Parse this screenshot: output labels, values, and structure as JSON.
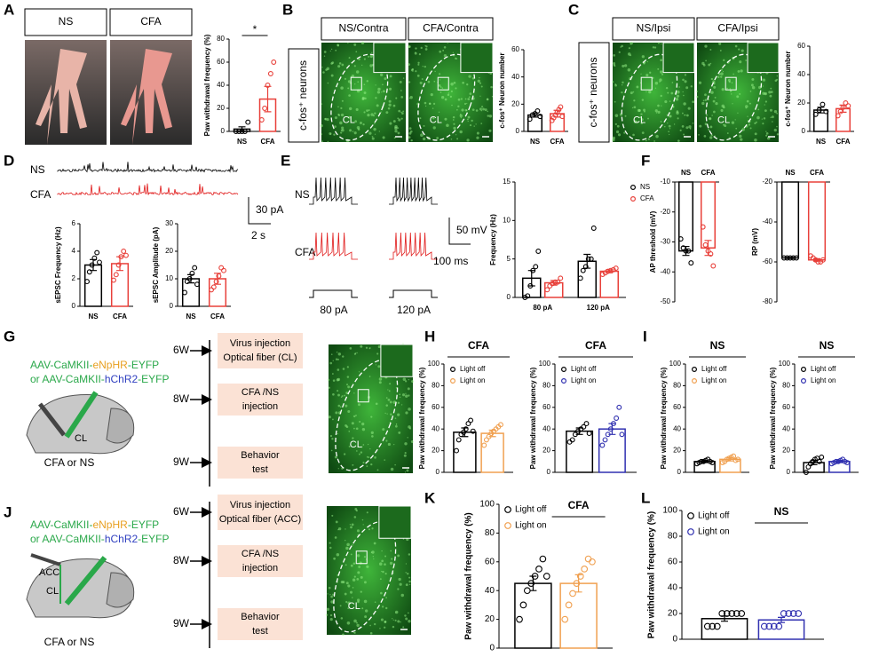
{
  "panel_labels": [
    "A",
    "B",
    "C",
    "D",
    "E",
    "F",
    "G",
    "H",
    "I",
    "J",
    "K",
    "L"
  ],
  "A": {
    "groups": [
      "NS",
      "CFA"
    ]
  },
  "B": {
    "side_label": "c-fos⁺ neurons",
    "groups": [
      "NS/Contra",
      "CFA/Contra"
    ],
    "region": "CL"
  },
  "C": {
    "side_label": "c-fos⁺ neurons",
    "groups": [
      "NS/Ipsi",
      "CFA/Ipsi"
    ],
    "region": "CL"
  },
  "D": {
    "traces": [
      "NS",
      "CFA"
    ],
    "scale": [
      "30 pA",
      "2 s"
    ]
  },
  "E": {
    "traces": [
      "NS",
      "CFA"
    ],
    "scale": [
      "50 mV",
      "100 ms"
    ],
    "steps": [
      "80 pA",
      "120 pA"
    ]
  },
  "G": {
    "virus": [
      [
        "AAV-CaMKII-",
        "eNpHR",
        "-EYFP"
      ],
      [
        "or AAV-CaMKII-",
        "hChR2",
        "-EYFP"
      ]
    ],
    "region": "CL",
    "group": "CFA or NS",
    "timeline": [
      {
        "week": "6W",
        "step": [
          "Virus injection",
          "Optical fiber (CL)"
        ]
      },
      {
        "week": "8W",
        "step": [
          "CFA /NS",
          "injection"
        ]
      },
      {
        "week": "9W",
        "step": [
          "Behavior",
          "test"
        ]
      }
    ],
    "histology_region": "CL"
  },
  "J": {
    "virus": [
      [
        "AAV-CaMKII-",
        "eNpHR",
        "-EYFP"
      ],
      [
        "or AAV-CaMKII-",
        "hChR2",
        "-EYFP"
      ]
    ],
    "regions": [
      "ACC",
      "CL"
    ],
    "group": "CFA or NS",
    "timeline": [
      {
        "week": "6W",
        "step": [
          "Virus injection",
          "Optical fiber (ACC)"
        ]
      },
      {
        "week": "8W",
        "step": [
          "CFA /NS",
          "injection"
        ]
      },
      {
        "week": "9W",
        "step": [
          "Behavior",
          "test"
        ]
      }
    ],
    "histology_region": "CL"
  },
  "chart_data": [
    {
      "type": "bar",
      "ylabel": "Paw withdrawal frequency (%)",
      "categories": [
        "NS",
        "CFA"
      ],
      "values": [
        2,
        28
      ],
      "errors": [
        2,
        11
      ],
      "points": [
        [
          0,
          0,
          0,
          0,
          8
        ],
        [
          10,
          20,
          40,
          50,
          60
        ]
      ],
      "colors": [
        "#000000",
        "#e8403a"
      ],
      "ylim": [
        0,
        80
      ],
      "yticks": [
        0,
        20,
        40,
        60,
        80
      ],
      "annotation": "*"
    },
    {
      "type": "bar",
      "ylabel": "c-fos⁺ Neuron number",
      "categories": [
        "NS",
        "CFA"
      ],
      "values": [
        12,
        13
      ],
      "errors": [
        1.5,
        2.5
      ],
      "points": [
        [
          9,
          12,
          13,
          15,
          11
        ],
        [
          8,
          10,
          12,
          14,
          16,
          18,
          11
        ]
      ],
      "colors": [
        "#000000",
        "#e8403a"
      ],
      "ylim": [
        0,
        60
      ],
      "yticks": [
        0,
        20,
        40,
        60
      ]
    },
    {
      "type": "bar",
      "ylabel": "c-fos⁺ Neuron number",
      "categories": [
        "NS",
        "CFA"
      ],
      "values": [
        15,
        16
      ],
      "errors": [
        2,
        2.5
      ],
      "points": [
        [
          12,
          15,
          19,
          14
        ],
        [
          11,
          14,
          17,
          20,
          18
        ]
      ],
      "colors": [
        "#000000",
        "#e8403a"
      ],
      "ylim": [
        0,
        60
      ],
      "yticks": [
        0,
        20,
        40,
        60
      ]
    },
    {
      "type": "bar",
      "ylabel": "sEPSC Frequency (Hz)",
      "categories": [
        "NS",
        "CFA"
      ],
      "values": [
        3.0,
        3.1
      ],
      "errors": [
        0.4,
        0.5
      ],
      "points": [
        [
          1.8,
          2.5,
          3.0,
          3.5,
          3.9,
          3.2
        ],
        [
          1.9,
          2.3,
          3.0,
          3.6,
          4.0,
          3.7
        ]
      ],
      "colors": [
        "#000000",
        "#e8403a"
      ],
      "ylim": [
        0,
        6
      ],
      "yticks": [
        0,
        2,
        4,
        6
      ]
    },
    {
      "type": "bar",
      "ylabel": "sEPSC Amplitude (pA)",
      "categories": [
        "NS",
        "CFA"
      ],
      "values": [
        10,
        10
      ],
      "errors": [
        1.5,
        2
      ],
      "points": [
        [
          5,
          9,
          10,
          12,
          14,
          8
        ],
        [
          6,
          7,
          9,
          11,
          14,
          13
        ]
      ],
      "colors": [
        "#000000",
        "#e8403a"
      ],
      "ylim": [
        0,
        30
      ],
      "yticks": [
        0,
        10,
        20,
        30
      ]
    },
    {
      "type": "bar",
      "ylabel": "Frequency (Hz)",
      "categories": [
        "80 pA",
        "120 pA"
      ],
      "series": [
        {
          "name": "NS",
          "color": "#000000",
          "values": [
            2.5,
            4.7
          ],
          "errors": [
            1.0,
            0.9
          ],
          "points": [
            [
              0,
              0.2,
              1.5,
              3.5,
              4,
              6
            ],
            [
              2.5,
              3.5,
              4,
              5,
              5,
              9
            ]
          ]
        },
        {
          "name": "CFA",
          "color": "#e8403a",
          "values": [
            1.9,
            3.4
          ],
          "errors": [
            0.3,
            0.2
          ],
          "points": [
            [
              1,
              1.5,
              1.8,
              2,
              2,
              2.5
            ],
            [
              3,
              3.2,
              3.4,
              3.5,
              3.6,
              3.8
            ]
          ]
        }
      ],
      "ylim": [
        0,
        15
      ],
      "yticks": [
        0,
        5,
        10,
        15
      ]
    },
    {
      "type": "bar",
      "ylabel": "AP threshold (mV)",
      "categories": [
        "NS",
        "CFA"
      ],
      "values": [
        -33,
        -32
      ],
      "errors": [
        1.5,
        2.5
      ],
      "points": [
        [
          -29,
          -32,
          -33,
          -33,
          -37
        ],
        [
          -25,
          -31,
          -33,
          -34,
          -38
        ]
      ],
      "colors": [
        "#000000",
        "#e8403a"
      ],
      "ylim": [
        -50,
        -10
      ],
      "yticks": [
        -10,
        -20,
        -30,
        -40,
        -50
      ]
    },
    {
      "type": "bar",
      "ylabel": "RP (mV)",
      "categories": [
        "NS",
        "CFA"
      ],
      "values": [
        -58,
        -59
      ],
      "errors": [
        0.3,
        0.6
      ],
      "points": [
        [
          -58,
          -58,
          -58,
          -58,
          -58
        ],
        [
          -57,
          -58,
          -59,
          -60,
          -60,
          -59
        ]
      ],
      "colors": [
        "#000000",
        "#e8403a"
      ],
      "ylim": [
        -80,
        -20
      ],
      "yticks": [
        -20,
        -40,
        -60,
        -80
      ]
    },
    {
      "type": "bar",
      "title": "CFA",
      "ylabel": "Paw withdrawal frequency (%)",
      "series": [
        {
          "name": "Light off",
          "color": "#000000",
          "values": [
            37
          ],
          "errors": [
            4
          ],
          "points": [
            [
              20,
              30,
              35,
              37,
              40,
              45,
              48,
              38
            ]
          ]
        },
        {
          "name": "Light on",
          "color": "#f0a050",
          "values": [
            36
          ],
          "errors": [
            3
          ],
          "points": [
            [
              25,
              30,
              33,
              36,
              38,
              40,
              42,
              44
            ]
          ]
        }
      ],
      "ylim": [
        0,
        100
      ],
      "yticks": [
        0,
        20,
        40,
        60,
        80,
        100
      ]
    },
    {
      "type": "bar",
      "title": "CFA",
      "ylabel": "Paw withdrawal frequency (%)",
      "series": [
        {
          "name": "Light off",
          "color": "#000000",
          "values": [
            38
          ],
          "errors": [
            3
          ],
          "points": [
            [
              28,
              30,
              35,
              38,
              40,
              42,
              45,
              36
            ]
          ]
        },
        {
          "name": "Light on",
          "color": "#3030b0",
          "values": [
            40
          ],
          "errors": [
            5
          ],
          "points": [
            [
              25,
              30,
              35,
              40,
              45,
              50,
              60,
              35
            ]
          ]
        }
      ],
      "ylim": [
        0,
        100
      ],
      "yticks": [
        0,
        20,
        40,
        60,
        80,
        100
      ]
    },
    {
      "type": "bar",
      "title": "NS",
      "ylabel": "Paw withdrawal frequency (%)",
      "series": [
        {
          "name": "Light off",
          "color": "#000000",
          "values": [
            10
          ],
          "errors": [
            1
          ],
          "points": [
            [
              8,
              9,
              10,
              10,
              11,
              12,
              10,
              9
            ]
          ]
        },
        {
          "name": "Light on",
          "color": "#f0a050",
          "values": [
            12
          ],
          "errors": [
            1.5
          ],
          "points": [
            [
              9,
              10,
              12,
              13,
              14,
              15,
              11,
              12
            ]
          ]
        }
      ],
      "ylim": [
        0,
        100
      ],
      "yticks": [
        0,
        20,
        40,
        60,
        80,
        100
      ]
    },
    {
      "type": "bar",
      "title": "NS",
      "ylabel": "Paw withdrawal frequency (%)",
      "series": [
        {
          "name": "Light off",
          "color": "#000000",
          "values": [
            9
          ],
          "errors": [
            2
          ],
          "points": [
            [
              0,
              5,
              8,
              10,
              12,
              13,
              10,
              14
            ]
          ]
        },
        {
          "name": "Light on",
          "color": "#3030b0",
          "values": [
            10
          ],
          "errors": [
            1
          ],
          "points": [
            [
              8,
              9,
              10,
              10,
              11,
              12,
              10,
              9
            ]
          ]
        }
      ],
      "ylim": [
        0,
        100
      ],
      "yticks": [
        0,
        20,
        40,
        60,
        80,
        100
      ]
    },
    {
      "type": "bar",
      "title": "CFA",
      "ylabel": "Paw withdrawal frequency (%)",
      "series": [
        {
          "name": "Light off",
          "color": "#000000",
          "values": [
            45
          ],
          "errors": [
            5
          ],
          "points": [
            [
              20,
              30,
              40,
              45,
              50,
              55,
              62,
              50
            ]
          ]
        },
        {
          "name": "Light on",
          "color": "#f0a050",
          "values": [
            45
          ],
          "errors": [
            6
          ],
          "points": [
            [
              20,
              30,
              38,
              45,
              50,
              55,
              62,
              60
            ]
          ]
        }
      ],
      "ylim": [
        0,
        100
      ],
      "yticks": [
        0,
        20,
        40,
        60,
        80,
        100
      ]
    },
    {
      "type": "bar",
      "title": "NS",
      "ylabel": "Paw withdrawal frequency (%)",
      "series": [
        {
          "name": "Light off",
          "color": "#000000",
          "values": [
            16
          ],
          "errors": [
            2
          ],
          "points": [
            [
              10,
              10,
              10,
              20,
              20,
              20,
              20,
              20
            ]
          ]
        },
        {
          "name": "Light on",
          "color": "#3030b0",
          "values": [
            15
          ],
          "errors": [
            2
          ],
          "points": [
            [
              10,
              10,
              10,
              10,
              20,
              20,
              20,
              20
            ]
          ]
        }
      ],
      "ylim": [
        0,
        100
      ],
      "yticks": [
        0,
        20,
        40,
        60,
        80,
        100
      ]
    }
  ]
}
